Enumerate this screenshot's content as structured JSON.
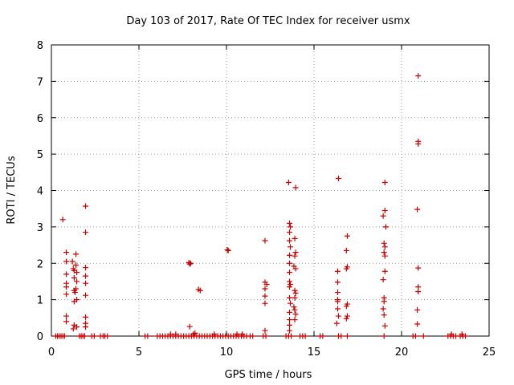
{
  "chart_data": {
    "type": "scatter",
    "title": "Day 103 of 2017, Rate Of TEC Index for receiver usmx",
    "xlabel": "GPS time / hours",
    "ylabel": "ROTI / TECUs",
    "xlim": [
      0,
      25
    ],
    "ylim": [
      0,
      8
    ],
    "xticks": [
      0,
      5,
      10,
      15,
      20,
      25
    ],
    "yticks": [
      0,
      1,
      2,
      3,
      4,
      5,
      6,
      7,
      8
    ],
    "grid": true,
    "marker": "+",
    "color": "#cc0000",
    "series": [
      {
        "name": "ROTI",
        "points": [
          [
            0.25,
            0
          ],
          [
            0.35,
            0
          ],
          [
            0.45,
            0
          ],
          [
            0.55,
            0
          ],
          [
            0.65,
            0
          ],
          [
            0.75,
            0
          ],
          [
            0.65,
            3.2
          ],
          [
            0.85,
            2.3
          ],
          [
            0.85,
            2.05
          ],
          [
            0.85,
            1.7
          ],
          [
            0.85,
            1.45
          ],
          [
            0.85,
            1.35
          ],
          [
            0.85,
            1.15
          ],
          [
            0.85,
            0.55
          ],
          [
            0.85,
            0.4
          ],
          [
            1.2,
            2.05
          ],
          [
            1.25,
            1.85
          ],
          [
            1.3,
            1.8
          ],
          [
            1.3,
            1.6
          ],
          [
            1.3,
            1.25
          ],
          [
            1.35,
            1.2
          ],
          [
            1.3,
            0.95
          ],
          [
            1.3,
            0.3
          ],
          [
            1.25,
            0.2
          ],
          [
            1.4,
            2.25
          ],
          [
            1.4,
            1.95
          ],
          [
            1.45,
            1.75
          ],
          [
            1.45,
            1.5
          ],
          [
            1.4,
            1.3
          ],
          [
            1.45,
            1.0
          ],
          [
            1.45,
            0.25
          ],
          [
            1.6,
            0
          ],
          [
            1.7,
            0
          ],
          [
            1.8,
            0
          ],
          [
            1.9,
            0
          ],
          [
            1.95,
            3.57
          ],
          [
            1.95,
            2.85
          ],
          [
            1.95,
            1.88
          ],
          [
            1.95,
            1.65
          ],
          [
            1.95,
            1.45
          ],
          [
            1.95,
            1.12
          ],
          [
            1.95,
            0.52
          ],
          [
            1.95,
            0.35
          ],
          [
            1.95,
            0.25
          ],
          [
            2.3,
            0
          ],
          [
            2.45,
            0
          ],
          [
            2.8,
            0
          ],
          [
            2.95,
            0
          ],
          [
            3.05,
            0
          ],
          [
            3.2,
            0
          ],
          [
            5.35,
            0
          ],
          [
            5.5,
            0
          ],
          [
            6.05,
            0
          ],
          [
            6.2,
            0
          ],
          [
            6.35,
            0
          ],
          [
            6.5,
            0
          ],
          [
            6.65,
            0
          ],
          [
            6.8,
            0
          ],
          [
            6.95,
            0
          ],
          [
            7.1,
            0
          ],
          [
            7.25,
            0
          ],
          [
            7.4,
            0
          ],
          [
            7.55,
            0
          ],
          [
            7.7,
            0
          ],
          [
            7.85,
            0
          ],
          [
            8.0,
            0
          ],
          [
            8.15,
            0
          ],
          [
            8.3,
            0
          ],
          [
            8.45,
            0
          ],
          [
            8.6,
            0
          ],
          [
            8.75,
            0
          ],
          [
            8.9,
            0
          ],
          [
            9.05,
            0
          ],
          [
            9.2,
            0
          ],
          [
            9.35,
            0
          ],
          [
            9.5,
            0
          ],
          [
            9.65,
            0
          ],
          [
            9.8,
            0
          ],
          [
            9.95,
            0
          ],
          [
            10.1,
            0
          ],
          [
            10.25,
            0
          ],
          [
            10.4,
            0
          ],
          [
            10.55,
            0
          ],
          [
            10.7,
            0
          ],
          [
            10.85,
            0
          ],
          [
            11.0,
            0
          ],
          [
            11.15,
            0
          ],
          [
            6.8,
            0.05
          ],
          [
            7.1,
            0.05
          ],
          [
            8.1,
            0.05
          ],
          [
            9.3,
            0.05
          ],
          [
            10.6,
            0.05
          ],
          [
            10.9,
            0.05
          ],
          [
            8.2,
            0.08
          ],
          [
            7.85,
            2.02
          ],
          [
            7.9,
            1.98
          ],
          [
            7.95,
            2.0
          ],
          [
            8.4,
            1.28
          ],
          [
            8.5,
            1.25
          ],
          [
            7.9,
            0.26
          ],
          [
            10.05,
            2.37
          ],
          [
            10.1,
            2.35
          ],
          [
            11.35,
            0
          ],
          [
            11.5,
            0
          ],
          [
            12.1,
            0
          ],
          [
            12.25,
            0
          ],
          [
            12.2,
            2.62
          ],
          [
            12.2,
            1.48
          ],
          [
            12.3,
            1.42
          ],
          [
            12.2,
            1.3
          ],
          [
            12.2,
            1.1
          ],
          [
            12.2,
            0.9
          ],
          [
            12.2,
            0.15
          ],
          [
            13.55,
            4.22
          ],
          [
            13.6,
            3.1
          ],
          [
            13.65,
            3.0
          ],
          [
            13.6,
            2.85
          ],
          [
            13.6,
            2.62
          ],
          [
            13.65,
            2.45
          ],
          [
            13.6,
            2.22
          ],
          [
            13.6,
            2.0
          ],
          [
            13.6,
            1.75
          ],
          [
            13.6,
            1.5
          ],
          [
            13.65,
            1.42
          ],
          [
            13.6,
            1.35
          ],
          [
            13.6,
            1.05
          ],
          [
            13.65,
            0.9
          ],
          [
            13.6,
            0.65
          ],
          [
            13.6,
            0.45
          ],
          [
            13.6,
            0.3
          ],
          [
            13.6,
            0.15
          ],
          [
            13.95,
            4.08
          ],
          [
            13.9,
            2.68
          ],
          [
            13.95,
            2.3
          ],
          [
            13.9,
            2.2
          ],
          [
            13.85,
            1.92
          ],
          [
            13.95,
            1.85
          ],
          [
            13.9,
            1.25
          ],
          [
            13.95,
            1.18
          ],
          [
            13.9,
            1.05
          ],
          [
            13.85,
            0.8
          ],
          [
            13.9,
            0.72
          ],
          [
            13.95,
            0.6
          ],
          [
            13.9,
            0.45
          ],
          [
            13.4,
            0
          ],
          [
            13.55,
            0
          ],
          [
            13.7,
            0
          ],
          [
            14.2,
            0
          ],
          [
            14.35,
            0
          ],
          [
            14.5,
            0
          ],
          [
            15.35,
            0
          ],
          [
            15.5,
            0
          ],
          [
            16.4,
            4.33
          ],
          [
            16.35,
            1.78
          ],
          [
            16.35,
            1.48
          ],
          [
            16.35,
            1.2
          ],
          [
            16.35,
            1.0
          ],
          [
            16.35,
            0.95
          ],
          [
            16.35,
            0.75
          ],
          [
            16.4,
            0.55
          ],
          [
            16.3,
            0.35
          ],
          [
            16.4,
            0
          ],
          [
            16.55,
            0
          ],
          [
            16.9,
            2.75
          ],
          [
            16.85,
            2.35
          ],
          [
            16.9,
            1.9
          ],
          [
            16.85,
            1.85
          ],
          [
            16.9,
            0.88
          ],
          [
            16.85,
            0.82
          ],
          [
            16.9,
            0.55
          ],
          [
            16.85,
            0.48
          ],
          [
            16.9,
            0
          ],
          [
            19.05,
            4.22
          ],
          [
            19.05,
            3.45
          ],
          [
            18.95,
            3.3
          ],
          [
            19.1,
            3.0
          ],
          [
            19.0,
            2.55
          ],
          [
            19.05,
            2.45
          ],
          [
            19.0,
            2.3
          ],
          [
            19.05,
            2.2
          ],
          [
            19.05,
            1.78
          ],
          [
            18.95,
            1.55
          ],
          [
            19.0,
            1.05
          ],
          [
            19.0,
            0.95
          ],
          [
            18.95,
            0.75
          ],
          [
            19.0,
            0.58
          ],
          [
            19.05,
            0.28
          ],
          [
            19.0,
            0
          ],
          [
            20.65,
            0
          ],
          [
            20.8,
            0
          ],
          [
            20.95,
            7.15
          ],
          [
            20.95,
            5.35
          ],
          [
            20.95,
            5.28
          ],
          [
            20.9,
            3.48
          ],
          [
            20.95,
            1.87
          ],
          [
            20.95,
            1.35
          ],
          [
            20.95,
            1.22
          ],
          [
            20.9,
            0.72
          ],
          [
            20.9,
            0.33
          ],
          [
            21.25,
            0
          ],
          [
            22.65,
            0
          ],
          [
            22.8,
            0
          ],
          [
            22.95,
            0
          ],
          [
            23.1,
            0
          ],
          [
            23.35,
            0
          ],
          [
            23.5,
            0
          ],
          [
            23.65,
            0
          ],
          [
            22.85,
            0.05
          ],
          [
            23.45,
            0.05
          ]
        ]
      }
    ]
  }
}
